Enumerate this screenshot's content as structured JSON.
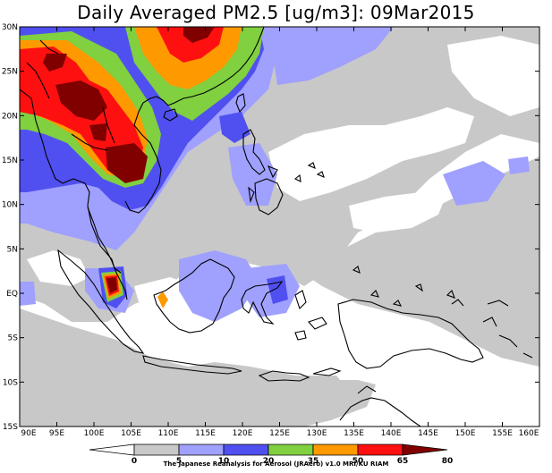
{
  "title": "Daily Averaged PM2.5 [ug/m3]: 09Mar2015",
  "map": {
    "x_labels": [
      "90E",
      "95E",
      "100E",
      "105E",
      "110E",
      "115E",
      "120E",
      "125E",
      "130E",
      "135E",
      "140E",
      "145E",
      "150E",
      "155E",
      "160E"
    ],
    "y_labels": [
      "30N",
      "25N",
      "20N",
      "15N",
      "10N",
      "5N",
      "EQ",
      "5S",
      "10S",
      "15S"
    ]
  },
  "colorbar": {
    "ticks": [
      "0",
      "5",
      "10",
      "20",
      "35",
      "50",
      "65",
      "80"
    ],
    "colors": [
      "#ffffff",
      "#c8c8c8",
      "#a0a0ff",
      "#5050f0",
      "#80d040",
      "#ff9900",
      "#ff1010",
      "#800000"
    ]
  },
  "credit": "The Japanese Reanalysis for Aerosol (JRAero) v1.0 MRI/KU RIAM",
  "palette": {
    "white": "#ffffff",
    "gray": "#c8c8c8",
    "lightblue": "#a0a0ff",
    "blue": "#5050f0",
    "green": "#80d040",
    "orange": "#ff9900",
    "red": "#ff1010",
    "darkred": "#800000"
  }
}
